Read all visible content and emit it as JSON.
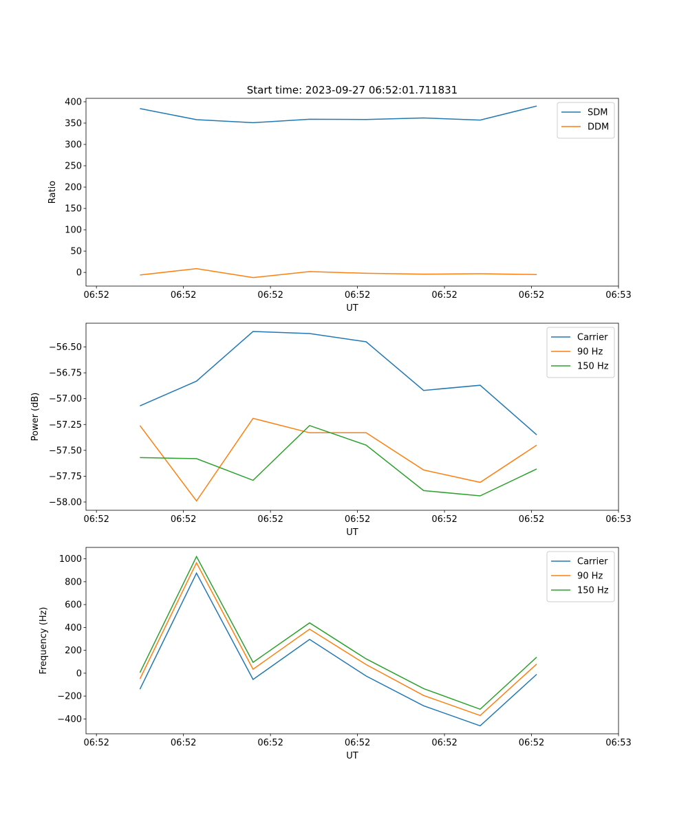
{
  "title": "Start time: 2023-09-27 06:52:01.711831",
  "chart_data": [
    {
      "type": "line",
      "xlabel": "UT",
      "ylabel": "Ratio",
      "x_unit": "seconds after 06:52:00",
      "x": [
        5.0,
        11.5,
        18.0,
        24.5,
        31.0,
        37.6,
        44.1,
        50.6
      ],
      "xlim": [
        -1.2,
        60.0
      ],
      "xticks": [
        0,
        10,
        20,
        30,
        40,
        50,
        60
      ],
      "xtick_labels": [
        "06:52",
        "06:52",
        "06:52",
        "06:52",
        "06:52",
        "06:52",
        "06:53"
      ],
      "ylim": [
        -32,
        408
      ],
      "yticks": [
        0,
        50,
        100,
        150,
        200,
        250,
        300,
        350,
        400
      ],
      "ytick_labels": [
        "0",
        "50",
        "100",
        "150",
        "200",
        "250",
        "300",
        "350",
        "400"
      ],
      "legend": "top-right",
      "series": [
        {
          "name": "SDM",
          "color": "#1f77b4",
          "values": [
            384,
            358,
            351,
            359,
            358.5,
            362,
            357,
            390
          ]
        },
        {
          "name": "DDM",
          "color": "#ff7f0e",
          "values": [
            -6,
            9,
            -12,
            2,
            -2,
            -4,
            -3,
            -5
          ]
        }
      ]
    },
    {
      "type": "line",
      "xlabel": "UT",
      "ylabel": "Power (dB)",
      "x_unit": "seconds after 06:52:00",
      "x": [
        5.0,
        11.5,
        18.0,
        24.5,
        31.0,
        37.6,
        44.1,
        50.6
      ],
      "xlim": [
        -1.2,
        60.0
      ],
      "xticks": [
        0,
        10,
        20,
        30,
        40,
        50,
        60
      ],
      "xtick_labels": [
        "06:52",
        "06:52",
        "06:52",
        "06:52",
        "06:52",
        "06:52",
        "06:53"
      ],
      "ylim": [
        -58.08,
        -56.27
      ],
      "yticks": [
        -58.0,
        -57.75,
        -57.5,
        -57.25,
        -57.0,
        -56.75,
        -56.5
      ],
      "ytick_labels": [
        "−58.00",
        "−57.75",
        "−57.50",
        "−57.25",
        "−57.00",
        "−56.75",
        "−56.50"
      ],
      "legend": "top-right",
      "series": [
        {
          "name": "Carrier",
          "color": "#1f77b4",
          "values": [
            -57.07,
            -56.83,
            -56.35,
            -56.37,
            -56.45,
            -56.92,
            -56.87,
            -57.35
          ]
        },
        {
          "name": "90 Hz",
          "color": "#ff7f0e",
          "values": [
            -57.26,
            -57.99,
            -57.19,
            -57.33,
            -57.33,
            -57.69,
            -57.81,
            -57.45
          ]
        },
        {
          "name": "150 Hz",
          "color": "#2ca02c",
          "values": [
            -57.57,
            -57.58,
            -57.79,
            -57.26,
            -57.45,
            -57.89,
            -57.94,
            -57.68
          ]
        }
      ]
    },
    {
      "type": "line",
      "xlabel": "UT",
      "ylabel": "Frequency (Hz)",
      "x_unit": "seconds after 06:52:00",
      "x": [
        5.0,
        11.5,
        18.0,
        24.5,
        31.0,
        37.6,
        44.1,
        50.6
      ],
      "xlim": [
        -1.2,
        60.0
      ],
      "xticks": [
        0,
        10,
        20,
        30,
        40,
        50,
        60
      ],
      "xtick_labels": [
        "06:52",
        "06:52",
        "06:52",
        "06:52",
        "06:52",
        "06:52",
        "06:53"
      ],
      "ylim": [
        -530,
        1100
      ],
      "yticks": [
        -400,
        -200,
        0,
        200,
        400,
        600,
        800,
        1000
      ],
      "ytick_labels": [
        "−400",
        "−200",
        "0",
        "200",
        "400",
        "600",
        "800",
        "1000"
      ],
      "legend": "top-right",
      "series": [
        {
          "name": "Carrier",
          "color": "#1f77b4",
          "values": [
            -140,
            875,
            -55,
            295,
            -25,
            -285,
            -460,
            -10
          ]
        },
        {
          "name": "90 Hz",
          "color": "#ff7f0e",
          "values": [
            -50,
            965,
            35,
            385,
            75,
            -195,
            -370,
            80
          ]
        },
        {
          "name": "150 Hz",
          "color": "#2ca02c",
          "values": [
            5,
            1020,
            95,
            440,
            125,
            -135,
            -315,
            140
          ]
        }
      ]
    }
  ]
}
